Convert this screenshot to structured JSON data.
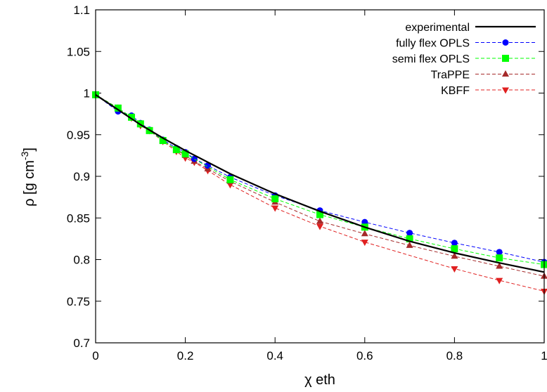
{
  "chart_data": {
    "type": "line",
    "xlabel": "χ eth",
    "ylabel": "ρ [g cm",
    "ylabel_sup": "-3",
    "ylabel_close": "]",
    "xlim": [
      0,
      1
    ],
    "ylim": [
      0.7,
      1.1
    ],
    "xticks": [
      "0",
      "0.2",
      "0.4",
      "0.6",
      "0.8",
      "1"
    ],
    "yticks": [
      "0.7",
      "0.75",
      "0.8",
      "0.85",
      "0.9",
      "0.95",
      "1",
      "1.05",
      "1.1"
    ],
    "legend_position": "top-right",
    "series": [
      {
        "name": "experimental",
        "color": "#000000",
        "marker": "none",
        "style": "solid",
        "x": [
          0,
          0.05,
          0.1,
          0.15,
          0.2,
          0.25,
          0.3,
          0.4,
          0.5,
          0.6,
          0.7,
          0.8,
          0.9,
          1.0
        ],
        "y": [
          0.998,
          0.98,
          0.962,
          0.946,
          0.931,
          0.917,
          0.903,
          0.879,
          0.858,
          0.839,
          0.822,
          0.808,
          0.796,
          0.785
        ]
      },
      {
        "name": "fully flex OPLS",
        "color": "#0000ff",
        "marker": "circle",
        "style": "dashed",
        "x": [
          0,
          0.05,
          0.08,
          0.1,
          0.12,
          0.15,
          0.18,
          0.2,
          0.22,
          0.25,
          0.3,
          0.4,
          0.5,
          0.6,
          0.7,
          0.8,
          0.9,
          1.0
        ],
        "y": [
          0.998,
          0.978,
          0.973,
          0.964,
          0.956,
          0.944,
          0.934,
          0.929,
          0.921,
          0.913,
          0.899,
          0.877,
          0.859,
          0.845,
          0.832,
          0.82,
          0.809,
          0.797
        ]
      },
      {
        "name": "semi flex OPLS",
        "color": "#00ff00",
        "marker": "square",
        "style": "dashed",
        "x": [
          0,
          0.05,
          0.08,
          0.1,
          0.12,
          0.15,
          0.18,
          0.2,
          0.3,
          0.4,
          0.5,
          0.6,
          0.7,
          0.8,
          0.9,
          1.0
        ],
        "y": [
          0.998,
          0.982,
          0.971,
          0.963,
          0.955,
          0.943,
          0.932,
          0.927,
          0.896,
          0.873,
          0.854,
          0.839,
          0.825,
          0.813,
          0.802,
          0.794
        ]
      },
      {
        "name": "TraPPE",
        "color": "#a52a2a",
        "marker": "triangle-up",
        "style": "dashed",
        "x": [
          0,
          0.05,
          0.08,
          0.1,
          0.12,
          0.15,
          0.18,
          0.2,
          0.22,
          0.25,
          0.3,
          0.4,
          0.5,
          0.6,
          0.7,
          0.8,
          0.9,
          1.0
        ],
        "y": [
          0.998,
          0.982,
          0.971,
          0.962,
          0.955,
          0.943,
          0.932,
          0.925,
          0.918,
          0.909,
          0.894,
          0.869,
          0.846,
          0.831,
          0.817,
          0.804,
          0.792,
          0.78
        ]
      },
      {
        "name": "KBFF",
        "color": "#e02020",
        "marker": "triangle-down",
        "style": "dashed",
        "x": [
          0,
          0.05,
          0.08,
          0.1,
          0.12,
          0.15,
          0.18,
          0.2,
          0.22,
          0.25,
          0.3,
          0.4,
          0.5,
          0.6,
          0.8,
          0.9,
          1.0
        ],
        "y": [
          0.998,
          0.982,
          0.97,
          0.961,
          0.955,
          0.942,
          0.93,
          0.922,
          0.917,
          0.907,
          0.89,
          0.862,
          0.84,
          0.821,
          0.789,
          0.775,
          0.762
        ]
      }
    ]
  }
}
